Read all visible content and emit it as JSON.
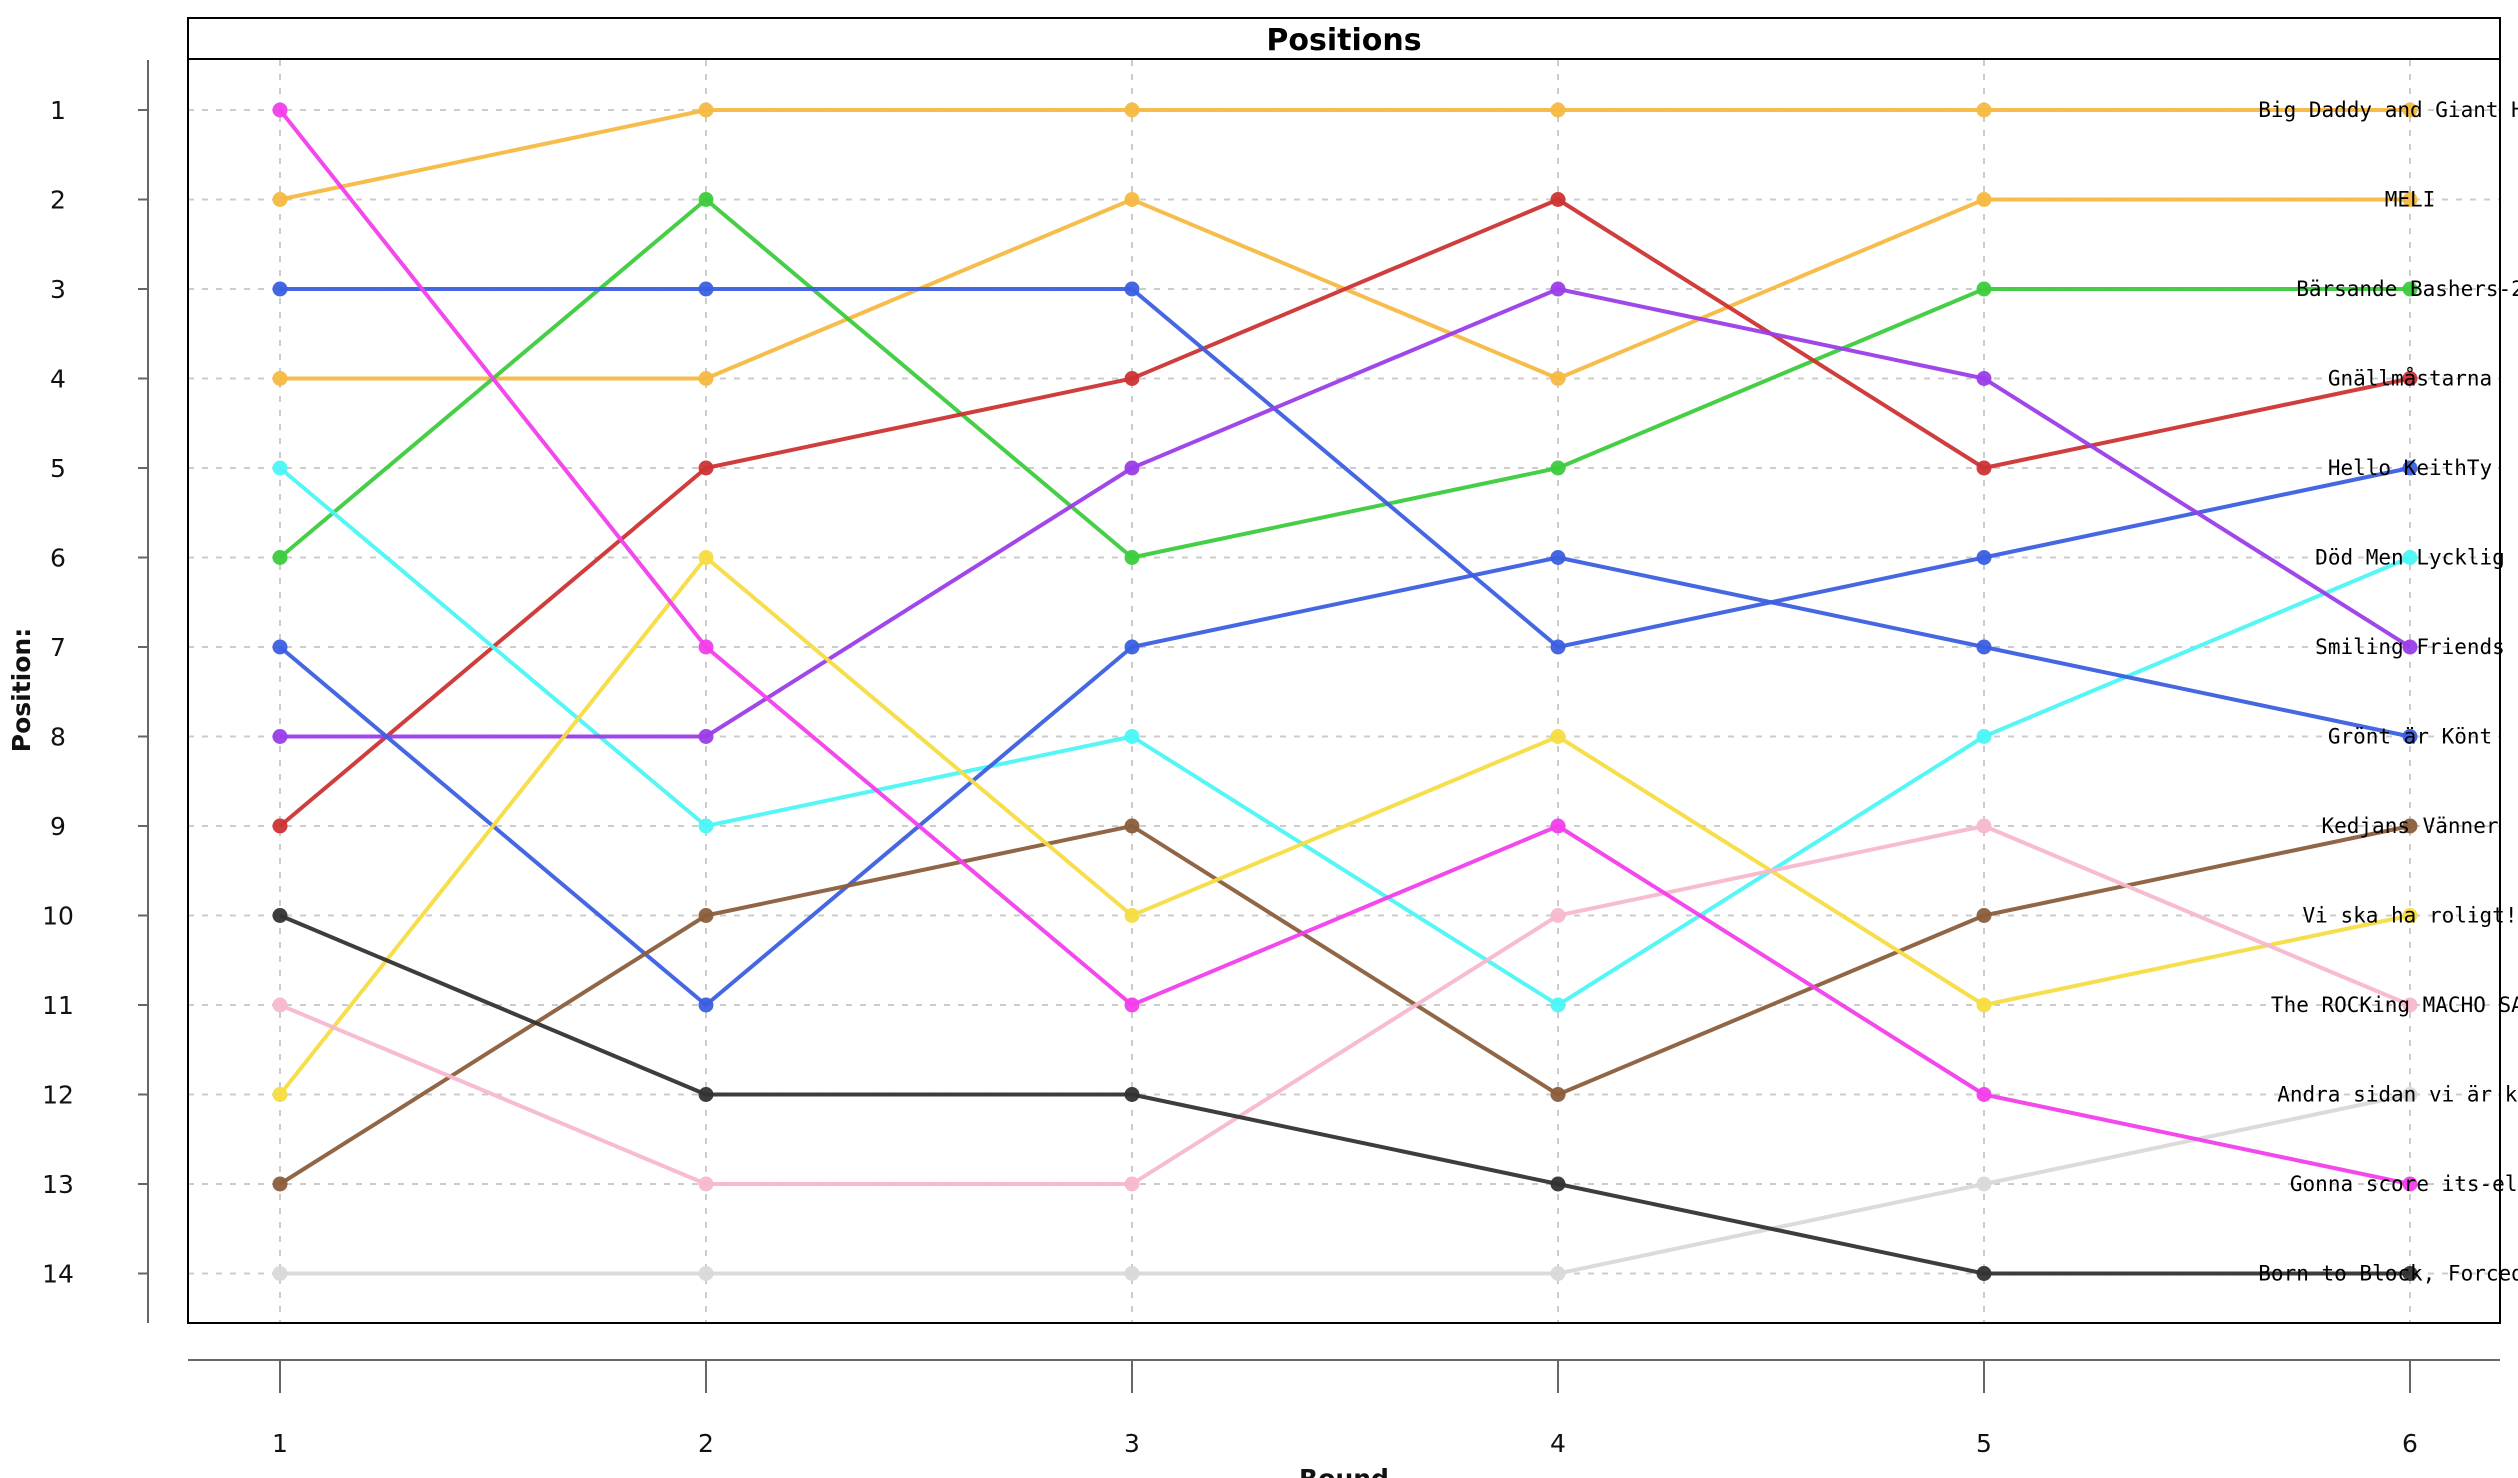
{
  "chart_data": {
    "type": "line",
    "title": "Positions",
    "xlabel": "Round",
    "ylabel": "Position:",
    "x": [
      1,
      2,
      3,
      4,
      5,
      6
    ],
    "ylim": [
      1,
      14
    ],
    "y_reversed": true,
    "grid": true,
    "series": [
      {
        "name": "Big Daddy and Giant Hays",
        "color": "#F5B942",
        "values": [
          2,
          1,
          1,
          1,
          1,
          1
        ]
      },
      {
        "name": "MELI",
        "color": "#F5B942",
        "values": [
          4,
          4,
          2,
          4,
          2,
          2
        ]
      },
      {
        "name": "Bärsande Bashers-2",
        "color": "#3DCB3D",
        "values": [
          6,
          2,
          6,
          5,
          3,
          3
        ]
      },
      {
        "name": "Gnällmåstarna",
        "color": "#CC3333",
        "values": [
          9,
          5,
          4,
          2,
          5,
          4
        ]
      },
      {
        "name": "Hello KeithTy",
        "color": "#3B5FE0",
        "values": [
          3,
          3,
          3,
          7,
          6,
          5
        ]
      },
      {
        "name": "Död Men Lycklig",
        "color": "#4DF5F5",
        "values": [
          5,
          9,
          8,
          11,
          8,
          6
        ]
      },
      {
        "name": "Smiling Friends",
        "color": "#9B3DE8",
        "values": [
          8,
          8,
          5,
          3,
          4,
          7
        ]
      },
      {
        "name": "Grönt är Könt",
        "color": "#3B5FE0",
        "values": [
          7,
          11,
          7,
          6,
          7,
          8
        ]
      },
      {
        "name": "Kedjans Vänner",
        "color": "#8B5E3C",
        "values": [
          13,
          10,
          9,
          12,
          10,
          9
        ]
      },
      {
        "name": "Vi ska ha roligt!",
        "color": "#F5DC42",
        "values": [
          12,
          6,
          10,
          8,
          11,
          10
        ]
      },
      {
        "name": "The ROCKing MACHO SAVA",
        "color": "#F7B8CF",
        "values": [
          11,
          13,
          13,
          10,
          9,
          11
        ]
      },
      {
        "name": "Andra sidan vi är kla",
        "color": "#D9D9D9",
        "values": [
          14,
          14,
          14,
          14,
          13,
          12
        ]
      },
      {
        "name": "Gonna score its-elf",
        "color": "#F23EEB",
        "values": [
          1,
          7,
          11,
          9,
          12,
          13
        ]
      },
      {
        "name": "Born to Block, Forced to",
        "color": "#333333",
        "values": [
          10,
          12,
          12,
          13,
          14,
          14
        ]
      }
    ]
  }
}
